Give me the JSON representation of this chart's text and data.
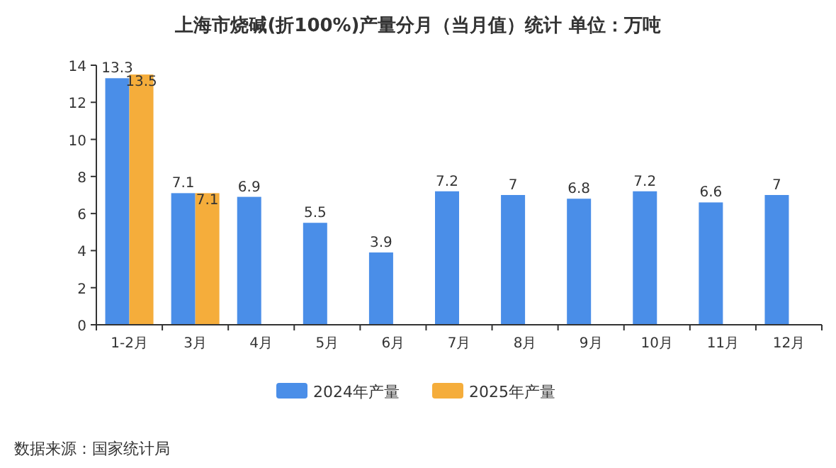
{
  "chart_data": {
    "type": "bar",
    "title": "上海市烧碱(折100%)产量分月（当月值）统计  单位：万吨",
    "categories": [
      "1-2月",
      "3月",
      "4月",
      "5月",
      "6月",
      "7月",
      "8月",
      "9月",
      "10月",
      "11月",
      "12月"
    ],
    "series": [
      {
        "name": "2024年产量",
        "color": "#4a8ee8",
        "values": [
          13.3,
          7.1,
          6.9,
          5.5,
          3.9,
          7.2,
          7,
          6.8,
          7.2,
          6.6,
          7
        ]
      },
      {
        "name": "2025年产量",
        "color": "#f5ad3b",
        "values": [
          13.5,
          7.1,
          null,
          null,
          null,
          null,
          null,
          null,
          null,
          null,
          null
        ]
      }
    ],
    "ylim": [
      0,
      14
    ],
    "yticks": [
      0,
      2,
      4,
      6,
      8,
      10,
      12,
      14
    ],
    "data_labels": true,
    "legend": "bottom",
    "grid": false,
    "annotations": [
      "数据来源：国家统计局"
    ]
  }
}
